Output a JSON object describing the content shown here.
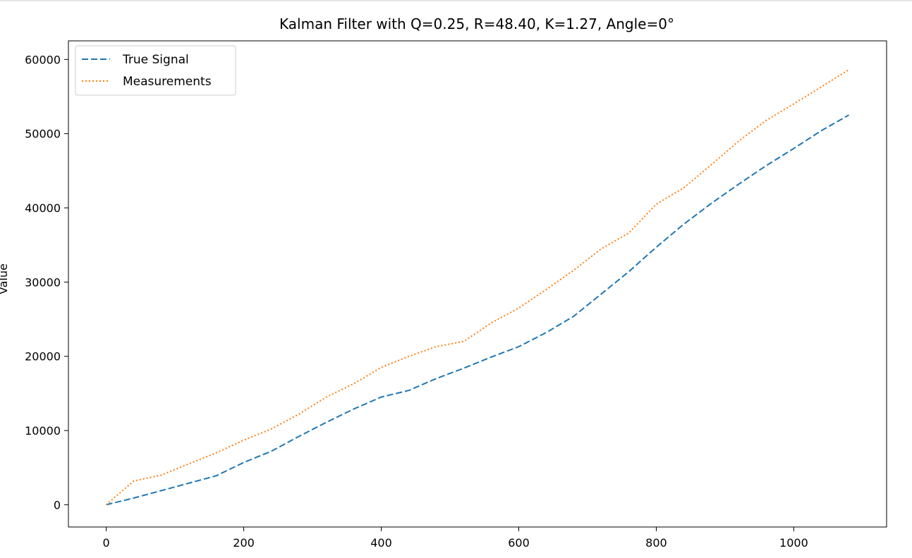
{
  "chart_data": {
    "type": "line",
    "title": "Kalman Filter with Q=0.25, R=48.40, K=1.27, Angle=0°",
    "xlabel": "",
    "ylabel": "Value",
    "xlim": [
      -55,
      1135
    ],
    "ylim": [
      -3000,
      62500
    ],
    "x_ticks": [
      0,
      200,
      400,
      600,
      800,
      1000
    ],
    "x_tick_labels": [
      "0",
      "200",
      "400",
      "600",
      "800",
      "1000"
    ],
    "y_ticks": [
      0,
      10000,
      20000,
      30000,
      40000,
      50000,
      60000
    ],
    "y_tick_labels": [
      "0",
      "10000",
      "20000",
      "30000",
      "40000",
      "50000",
      "60000"
    ],
    "grid": false,
    "legend_position": "upper-left",
    "x": [
      0,
      40,
      80,
      120,
      160,
      200,
      240,
      280,
      320,
      360,
      400,
      440,
      480,
      520,
      560,
      600,
      640,
      680,
      720,
      760,
      800,
      840,
      880,
      920,
      960,
      1000,
      1040,
      1080
    ],
    "series": [
      {
        "name": "True Signal",
        "style": "dashed",
        "color": "#1f77b4",
        "values": [
          0,
          900,
          1900,
          2900,
          3900,
          5700,
          7200,
          9200,
          11100,
          12900,
          14500,
          15400,
          17000,
          18400,
          19900,
          21300,
          23200,
          25400,
          28400,
          31400,
          34700,
          37800,
          40600,
          43200,
          45700,
          48000,
          50400,
          52500
        ]
      },
      {
        "name": "Measurements",
        "style": "dotted",
        "color": "#ff7f0e",
        "values": [
          0,
          3200,
          4000,
          5500,
          7000,
          8700,
          10200,
          12200,
          14500,
          16300,
          18500,
          20000,
          21300,
          22000,
          24500,
          26500,
          29000,
          31600,
          34500,
          36600,
          40500,
          42700,
          45800,
          49000,
          51800,
          54000,
          56300,
          58600
        ]
      }
    ]
  }
}
